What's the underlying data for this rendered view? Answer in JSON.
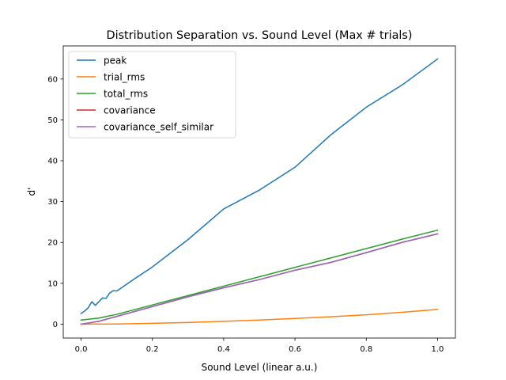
{
  "chart_data": {
    "type": "line",
    "title": "Distribution Separation vs. Sound Level (Max # trials)",
    "xlabel": "Sound Level (linear a.u.)",
    "ylabel": "d'",
    "xlim": [
      -0.05,
      1.05
    ],
    "ylim": [
      -3.4,
      68.1
    ],
    "xticks": [
      0.0,
      0.2,
      0.4,
      0.6,
      0.8,
      1.0
    ],
    "xtick_labels": [
      "0.0",
      "0.2",
      "0.4",
      "0.6",
      "0.8",
      "1.0"
    ],
    "yticks": [
      0,
      10,
      20,
      30,
      40,
      50,
      60
    ],
    "ytick_labels": [
      "0",
      "10",
      "20",
      "30",
      "40",
      "50",
      "60"
    ],
    "grid": false,
    "legend_position": "top-left",
    "series": [
      {
        "name": "peak",
        "color": "#1f77b4",
        "x": [
          0.0,
          0.01,
          0.02,
          0.03,
          0.04,
          0.05,
          0.06,
          0.07,
          0.08,
          0.09,
          0.1,
          0.15,
          0.2,
          0.3,
          0.4,
          0.5,
          0.6,
          0.7,
          0.8,
          0.9,
          1.0
        ],
        "y": [
          2.6,
          3.2,
          4.0,
          5.5,
          4.6,
          5.5,
          6.4,
          6.3,
          7.6,
          8.2,
          8.1,
          11.1,
          14.0,
          20.7,
          28.2,
          32.8,
          38.4,
          46.3,
          53.1,
          58.5,
          64.9
        ]
      },
      {
        "name": "trial_rms",
        "color": "#ff7f0e",
        "x": [
          0.0,
          0.1,
          0.2,
          0.3,
          0.4,
          0.5,
          0.6,
          0.7,
          0.8,
          0.9,
          1.0
        ],
        "y": [
          0.0,
          0.05,
          0.2,
          0.4,
          0.7,
          1.0,
          1.4,
          1.8,
          2.3,
          2.9,
          3.6
        ]
      },
      {
        "name": "total_rms",
        "color": "#2ca02c",
        "x": [
          0.0,
          0.05,
          0.1,
          0.2,
          0.3,
          0.4,
          0.5,
          0.6,
          0.7,
          0.8,
          0.9,
          1.0
        ],
        "y": [
          1.0,
          1.5,
          2.4,
          4.7,
          7.0,
          9.3,
          11.6,
          13.9,
          16.2,
          18.5,
          20.8,
          23.0
        ]
      },
      {
        "name": "covariance",
        "color": "#d62728",
        "x": [
          0.0,
          0.05,
          0.1,
          0.2,
          0.3,
          0.4,
          0.5,
          0.6,
          0.7,
          0.8,
          0.9,
          1.0
        ],
        "y": [
          0.0,
          0.7,
          1.9,
          4.3,
          6.7,
          8.9,
          10.9,
          13.2,
          15.1,
          17.5,
          20.0,
          22.1
        ]
      },
      {
        "name": "covariance_self_similar",
        "color": "#9467bd",
        "x": [
          0.0,
          0.05,
          0.1,
          0.2,
          0.3,
          0.4,
          0.5,
          0.6,
          0.7,
          0.8,
          0.9,
          1.0
        ],
        "y": [
          0.0,
          0.7,
          1.9,
          4.3,
          6.7,
          8.9,
          10.9,
          13.2,
          15.1,
          17.5,
          20.0,
          22.1
        ]
      }
    ]
  }
}
